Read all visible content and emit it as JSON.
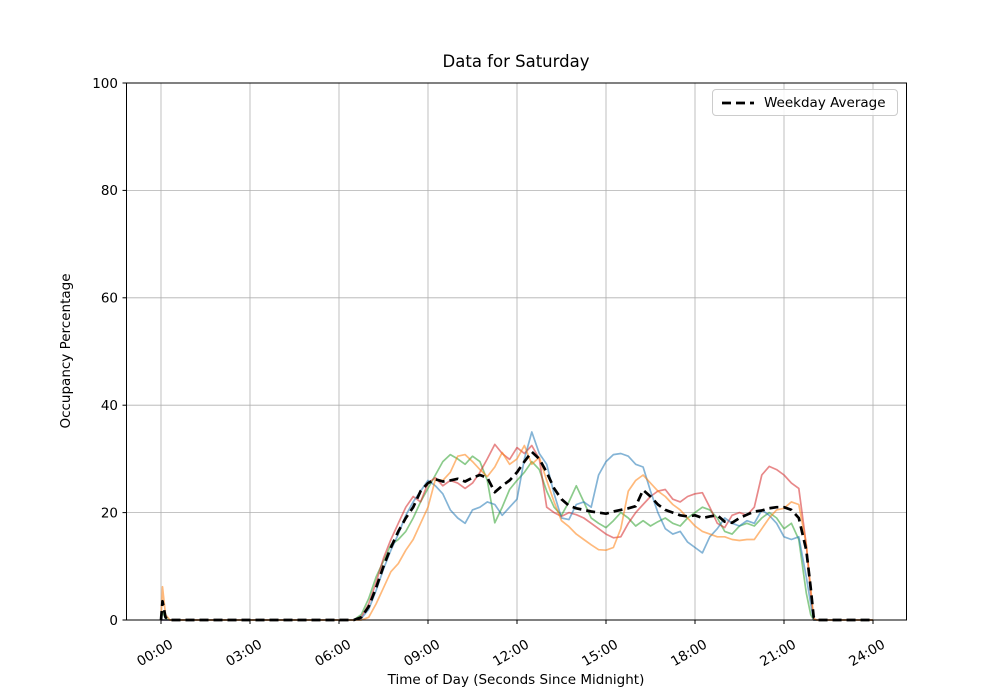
{
  "title": "Data for Saturday",
  "xlabel": "Time of Day (Seconds Since Midnight)",
  "ylabel": "Occupancy Percentage",
  "legend": {
    "label": "Weekday Average"
  },
  "colors": {
    "grid": "#b0b0b0",
    "spine": "#000000",
    "tick_text": "#000000",
    "average_line": "#000000",
    "legend_border": "#cccccc"
  },
  "chart_data": {
    "type": "line",
    "title": "Data for Saturday",
    "xlabel": "Time of Day (Seconds Since Midnight)",
    "ylabel": "Occupancy Percentage",
    "ylim": [
      0,
      100
    ],
    "xlim_hours": [
      -1.2,
      25.2
    ],
    "grid": true,
    "legend_position": "upper right",
    "y_ticks": [
      0,
      20,
      40,
      60,
      80,
      100
    ],
    "x_ticks": [
      {
        "hour": 0,
        "label": "00:00"
      },
      {
        "hour": 3,
        "label": "03:00"
      },
      {
        "hour": 6,
        "label": "06:00"
      },
      {
        "hour": 9,
        "label": "09:00"
      },
      {
        "hour": 12,
        "label": "12:00"
      },
      {
        "hour": 15,
        "label": "15:00"
      },
      {
        "hour": 18,
        "label": "18:00"
      },
      {
        "hour": 21,
        "label": "21:00"
      },
      {
        "hour": 24,
        "label": "24:00"
      }
    ],
    "x_hours": [
      0,
      0.05,
      0.15,
      0.3,
      1,
      2,
      3,
      4,
      5,
      6,
      6.5,
      6.75,
      7,
      7.25,
      7.5,
      7.75,
      8,
      8.25,
      8.5,
      8.75,
      9,
      9.25,
      9.5,
      9.75,
      10,
      10.25,
      10.5,
      10.75,
      11,
      11.25,
      11.5,
      11.75,
      12,
      12.25,
      12.5,
      12.75,
      13,
      13.25,
      13.5,
      13.75,
      14,
      14.25,
      14.5,
      14.75,
      15,
      15.25,
      15.5,
      15.75,
      16,
      16.25,
      16.5,
      16.75,
      17,
      17.25,
      17.5,
      17.75,
      18,
      18.25,
      18.5,
      18.75,
      19,
      19.25,
      19.5,
      19.75,
      20,
      20.25,
      20.5,
      20.75,
      21,
      21.25,
      21.5,
      21.75,
      21.9,
      22,
      22.1,
      22.5,
      23,
      23.5,
      24
    ],
    "series": [
      {
        "name": "saturday-sample-green",
        "color": "#2ca02c",
        "alpha": 0.55,
        "style": "solid",
        "in_legend": false,
        "values": [
          0,
          1.5,
          0.3,
          0,
          0,
          0,
          0,
          0,
          0,
          0,
          0,
          1,
          4,
          8,
          11,
          14,
          15,
          16.5,
          19,
          22,
          24.5,
          27,
          29.5,
          30.8,
          30,
          29,
          30.5,
          29.5,
          26,
          18.1,
          21,
          24.3,
          26,
          27.5,
          29.5,
          28,
          24,
          21,
          19.5,
          22,
          25,
          22,
          19,
          18,
          17.2,
          18.5,
          20,
          19,
          17.5,
          18.5,
          17.5,
          18.3,
          19,
          18,
          17.5,
          19,
          20,
          21,
          20.5,
          19,
          16.5,
          16,
          17.5,
          18,
          17.5,
          19,
          20,
          19,
          17,
          18,
          15,
          5,
          1,
          0,
          0,
          0,
          0,
          0,
          0
        ]
      },
      {
        "name": "saturday-sample-red",
        "color": "#d62728",
        "alpha": 0.55,
        "style": "solid",
        "in_legend": false,
        "values": [
          0,
          0,
          0,
          0,
          0,
          0,
          0,
          0,
          0,
          0,
          0,
          0.5,
          3,
          7,
          11.5,
          15,
          18,
          21,
          23,
          22,
          25.5,
          26.5,
          25,
          26,
          25.5,
          24.5,
          25.5,
          27.5,
          30,
          32.7,
          31,
          29.9,
          32.1,
          31,
          32.5,
          30,
          21,
          20,
          19.3,
          20,
          19.6,
          19,
          18,
          17,
          16,
          15.3,
          15.5,
          18,
          20,
          21.5,
          23,
          24,
          24.3,
          22.5,
          22,
          23,
          23.5,
          23.7,
          21,
          18,
          17.2,
          19.5,
          20,
          19.5,
          21,
          27,
          28.6,
          28,
          27,
          25.5,
          24.5,
          14,
          5,
          0,
          0,
          0,
          0,
          0,
          0
        ]
      },
      {
        "name": "saturday-sample-blue",
        "color": "#1f77b4",
        "alpha": 0.55,
        "style": "solid",
        "in_legend": false,
        "values": [
          0,
          0,
          0,
          0,
          0,
          0,
          0,
          0,
          0,
          0,
          0,
          0.3,
          2,
          5.5,
          9.5,
          13,
          16,
          19.5,
          22,
          24,
          26,
          25,
          23.5,
          20.5,
          19,
          18,
          20.5,
          21,
          22,
          21.5,
          19.5,
          21,
          22.5,
          30,
          35,
          31,
          29,
          23.5,
          19,
          18.7,
          21.5,
          22,
          21,
          27,
          29.5,
          30.8,
          31,
          30.5,
          29,
          28.5,
          24,
          20,
          17,
          16,
          16.5,
          14.5,
          13.5,
          12.5,
          15.5,
          17,
          19,
          18,
          17.5,
          18.5,
          18,
          20.5,
          19.5,
          18,
          15.5,
          15,
          15.5,
          8,
          3,
          0,
          0,
          0,
          0,
          0,
          0
        ]
      },
      {
        "name": "saturday-sample-orange",
        "color": "#ff7f0e",
        "alpha": 0.55,
        "style": "solid",
        "in_legend": false,
        "values": [
          0,
          6.2,
          1,
          0,
          0,
          0,
          0,
          0,
          0,
          0,
          0,
          0,
          0.5,
          3,
          6,
          9,
          10.5,
          13,
          15,
          18,
          21,
          26.2,
          26,
          27.5,
          30.5,
          30.8,
          29.5,
          28,
          26.7,
          28.5,
          31.2,
          29,
          30,
          32.5,
          29,
          30.3,
          26,
          22,
          18.5,
          17.4,
          16,
          15,
          14,
          13.1,
          13,
          13.5,
          17,
          24,
          26,
          27,
          25.5,
          24,
          23,
          21.5,
          20.5,
          19,
          17.5,
          16.5,
          16,
          15.5,
          15.5,
          15,
          14.8,
          15,
          15,
          17,
          19,
          20.5,
          20.8,
          22,
          21.5,
          14,
          6,
          0.3,
          0,
          0,
          0,
          0,
          0
        ]
      },
      {
        "name": "Weekday Average",
        "color": "#000000",
        "alpha": 1,
        "style": "dashed",
        "in_legend": true,
        "values": [
          0,
          3.5,
          0.5,
          0,
          0,
          0,
          0,
          0,
          0,
          0,
          0,
          0.5,
          2.5,
          6,
          10,
          13.5,
          16.5,
          19,
          21,
          24,
          25.5,
          26.2,
          25.8,
          26,
          26.3,
          25.8,
          26.5,
          27,
          26.5,
          23.8,
          25,
          26,
          27.5,
          29.5,
          31.3,
          30,
          27.5,
          24.5,
          22.5,
          21.3,
          20.8,
          20.5,
          20.2,
          20,
          19.8,
          20.2,
          20.5,
          20.8,
          21.2,
          24.2,
          23,
          21.5,
          20.5,
          20,
          19.5,
          19.3,
          19.5,
          19,
          19.3,
          19.5,
          18.3,
          18.1,
          19,
          19.6,
          20.2,
          20.4,
          20.8,
          21,
          21,
          20.5,
          19,
          13,
          6,
          0.5,
          0,
          0,
          0,
          0,
          0
        ]
      }
    ]
  }
}
